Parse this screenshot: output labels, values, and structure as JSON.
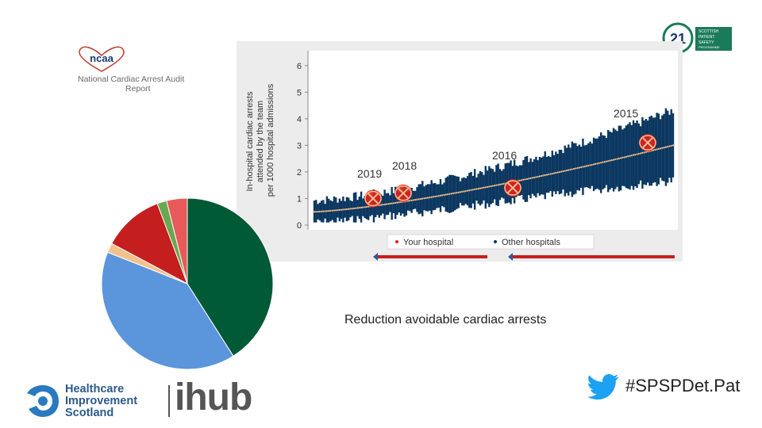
{
  "logos": {
    "ncaa": {
      "mark_text": "ncaa",
      "line1": "National Cardiac Arrest Audit",
      "line2": "Report"
    },
    "spsp": {
      "text_lines": [
        "SCOTTISH",
        "PATIENT",
        "SAFETY",
        "PROGRAMME"
      ]
    },
    "his": {
      "words": [
        "Healthcare",
        "Improvement",
        "Scotland"
      ],
      "ihub": "ihub"
    }
  },
  "annotation": "Reduction avoidable cardiac arrests",
  "hashtag": "#SPSPDet.Pat",
  "colors": {
    "navy": "#0b3760",
    "red": "#e02020",
    "arrow_blue": "#2d5a9a",
    "pie_green": "#005a36",
    "pie_blue": "#5b95dc",
    "pie_peach": "#f5c08a",
    "pie_red": "#c41e1e",
    "pie_lightgreen": "#6aa84f",
    "pie_pink": "#e85a5a"
  },
  "chart_data": [
    {
      "type": "scatter",
      "title": "",
      "ylabel": "In-hospital cardiac arrests attended by the team per 1000 hospital admissions",
      "xlabel": "",
      "ylim": [
        0,
        6.5
      ],
      "yticks": [
        0,
        1,
        2,
        3,
        4,
        5,
        6
      ],
      "legend": [
        "Your hospital",
        "Other hospitals"
      ],
      "legend_position": "bottom",
      "year_labels": [
        {
          "label": "2019",
          "x_index": 0
        },
        {
          "label": "2018",
          "x_index": 1
        },
        {
          "label": "2016",
          "x_index": 2
        },
        {
          "label": "2015",
          "x_index": 3
        }
      ],
      "your_hospital_points": [
        {
          "year": "2019",
          "y": 1.0
        },
        {
          "year": "2018",
          "y": 1.2
        },
        {
          "year": "2016",
          "y": 1.4
        },
        {
          "year": "2015",
          "y": 3.1
        }
      ],
      "other_hospitals_trend": {
        "start": 0.5,
        "end": 3.0,
        "count": 200
      }
    },
    {
      "type": "pie",
      "slices": [
        {
          "value": 41,
          "color": "#005a36"
        },
        {
          "value": 40,
          "color": "#5b95dc"
        },
        {
          "value": 1.8,
          "color": "#f5c08a"
        },
        {
          "value": 11.5,
          "color": "#c41e1e"
        },
        {
          "value": 1.8,
          "color": "#6aa84f"
        },
        {
          "value": 3.9,
          "color": "#e85a5a"
        }
      ]
    }
  ]
}
